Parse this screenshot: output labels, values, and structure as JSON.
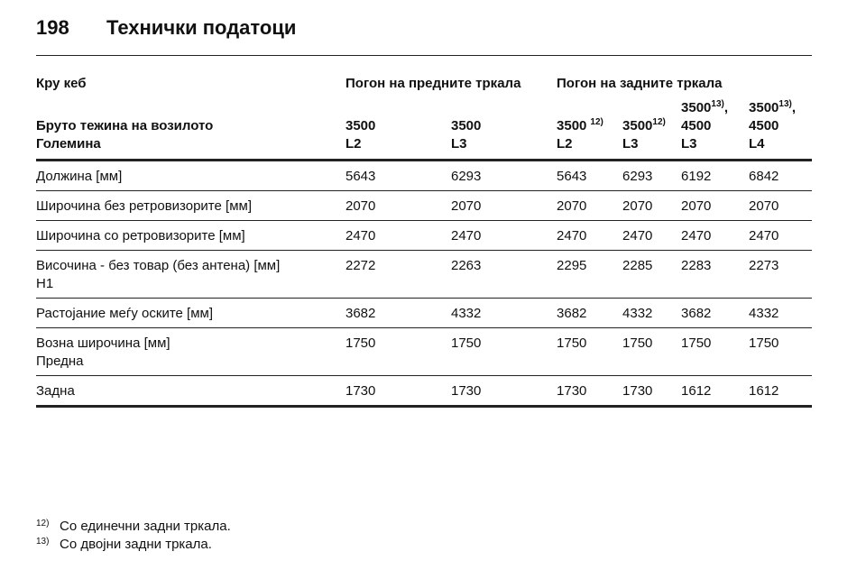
{
  "header": {
    "page_number": "198",
    "title": "Технички податоци"
  },
  "table": {
    "group_row": [
      "Кру кеб",
      "Погон на предните тркала",
      "Погон на задните тркала"
    ],
    "weight_row": {
      "label": "Бруто тежина на возилото",
      "cells": [
        {
          "main": "3500"
        },
        {
          "main": "3500"
        },
        {
          "main": "3500",
          "sup": "12)"
        },
        {
          "main": "3500",
          "sup": "12)"
        },
        {
          "main": "3500",
          "sup": "13)",
          "after": ",",
          "second": "4500"
        },
        {
          "main": "3500",
          "sup": "13)",
          "after": ",",
          "second": "4500"
        }
      ]
    },
    "size_row": [
      "Големина",
      "L2",
      "L3",
      "L2",
      "L3",
      "L3",
      "L4"
    ],
    "rows": [
      {
        "label": "Должина [мм]",
        "values": [
          "5643",
          "6293",
          "5643",
          "6293",
          "6192",
          "6842"
        ]
      },
      {
        "label": "Широчина без ретровизорите [мм]",
        "values": [
          "2070",
          "2070",
          "2070",
          "2070",
          "2070",
          "2070"
        ]
      },
      {
        "label": "Широчина со ретровизорите [мм]",
        "values": [
          "2470",
          "2470",
          "2470",
          "2470",
          "2470",
          "2470"
        ]
      },
      {
        "label": "Височина - без товар (без антена) [мм]",
        "sublabel": "H1",
        "values": [
          "2272",
          "2263",
          "2295",
          "2285",
          "2283",
          "2273"
        ]
      },
      {
        "label": "Растојание меѓу оските [мм]",
        "values": [
          "3682",
          "4332",
          "3682",
          "4332",
          "3682",
          "4332"
        ]
      },
      {
        "label": "Возна широчина [мм]",
        "sublabel": "Предна",
        "values": [
          "1750",
          "1750",
          "1750",
          "1750",
          "1750",
          "1750"
        ]
      },
      {
        "label": "Задна",
        "values": [
          "1730",
          "1730",
          "1730",
          "1730",
          "1612",
          "1612"
        ]
      }
    ]
  },
  "footnotes": [
    {
      "mark": "12)",
      "text": "Со единечни задни тркала."
    },
    {
      "mark": "13)",
      "text": "Со двојни задни тркала."
    }
  ]
}
